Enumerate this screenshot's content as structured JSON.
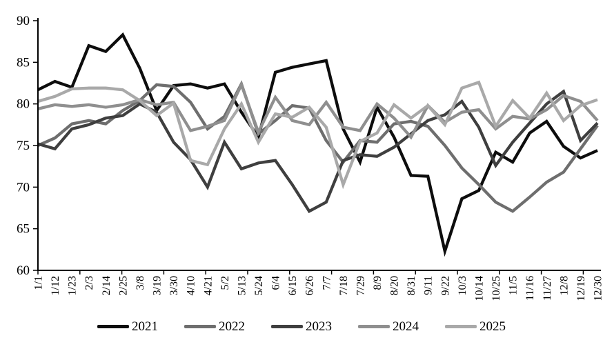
{
  "chart_data": {
    "type": "line",
    "title": "",
    "xlabel": "",
    "ylabel": "",
    "ylim": [
      60,
      90
    ],
    "y_ticks": [
      90,
      85,
      80,
      75,
      70,
      65,
      60
    ],
    "grid": false,
    "legend_position": "bottom",
    "x_labels": [
      "1/1",
      "1/12",
      "1/23",
      "2/3",
      "2/14",
      "2/25",
      "3/8",
      "3/19",
      "3/30",
      "4/10",
      "4/21",
      "5/2",
      "5/13",
      "5/24",
      "6/4",
      "6/15",
      "6/26",
      "7/7",
      "7/18",
      "7/29",
      "8/9",
      "8/20",
      "8/31",
      "9/11",
      "9/22",
      "10/3",
      "10/14",
      "10/25",
      "11/5",
      "11/16",
      "11/27",
      "12/8",
      "12/19",
      "12/30"
    ],
    "series": [
      {
        "name": "2021",
        "color": "#0d0d0d",
        "values": [
          81.7,
          82.7,
          82.0,
          87.0,
          86.3,
          88.3,
          84.3,
          79.2,
          82.2,
          82.4,
          81.9,
          82.4,
          79.0,
          76.0,
          83.8,
          84.4,
          84.8,
          85.2,
          77.0,
          73.0,
          79.6,
          76.0,
          71.4,
          71.3,
          62.3,
          68.6,
          69.6,
          74.2,
          73.0,
          76.5,
          77.9,
          74.9,
          73.5,
          74.4
        ]
      },
      {
        "name": "2022",
        "color": "#6e6e6e",
        "values": [
          75.0,
          75.9,
          77.6,
          78.0,
          77.6,
          79.2,
          80.4,
          82.3,
          82.1,
          80.2,
          77.0,
          78.5,
          82.4,
          76.4,
          78.0,
          79.8,
          79.5,
          75.6,
          73.0,
          75.6,
          75.4,
          77.6,
          77.9,
          77.3,
          75.0,
          72.3,
          70.3,
          68.2,
          67.1,
          68.8,
          70.6,
          71.8,
          74.6,
          77.4
        ]
      },
      {
        "name": "2023",
        "color": "#3f3f3f",
        "values": [
          75.2,
          74.6,
          77.0,
          77.5,
          78.3,
          78.6,
          80.0,
          79.0,
          75.4,
          73.3,
          70.0,
          75.4,
          72.2,
          72.9,
          73.2,
          70.3,
          67.1,
          68.2,
          73.2,
          73.9,
          73.7,
          74.8,
          76.4,
          78.0,
          78.7,
          80.3,
          77.2,
          72.6,
          75.4,
          77.7,
          80.0,
          81.5,
          75.6,
          77.7
        ]
      },
      {
        "name": "2024",
        "color": "#8f8f8f",
        "values": [
          79.4,
          79.9,
          79.7,
          79.9,
          79.6,
          79.9,
          80.5,
          79.9,
          80.2,
          76.8,
          77.3,
          78.0,
          82.3,
          76.6,
          80.8,
          78.0,
          77.5,
          80.2,
          77.2,
          76.8,
          80.0,
          78.3,
          76.0,
          79.8,
          77.8,
          79.0,
          79.3,
          77.0,
          78.5,
          78.2,
          79.3,
          81.0,
          80.3,
          78.0
        ]
      },
      {
        "name": "2025",
        "color": "#a9a9a9",
        "values": [
          80.3,
          80.9,
          81.8,
          81.9,
          81.9,
          81.7,
          80.4,
          78.6,
          80.1,
          73.2,
          72.7,
          77.0,
          80.0,
          75.4,
          78.8,
          78.4,
          79.6,
          77.2,
          70.3,
          75.5,
          76.5,
          79.9,
          78.3,
          79.8,
          77.5,
          81.9,
          82.6,
          77.3,
          80.4,
          78.3,
          81.3,
          78.0,
          79.8,
          80.5
        ]
      }
    ]
  }
}
